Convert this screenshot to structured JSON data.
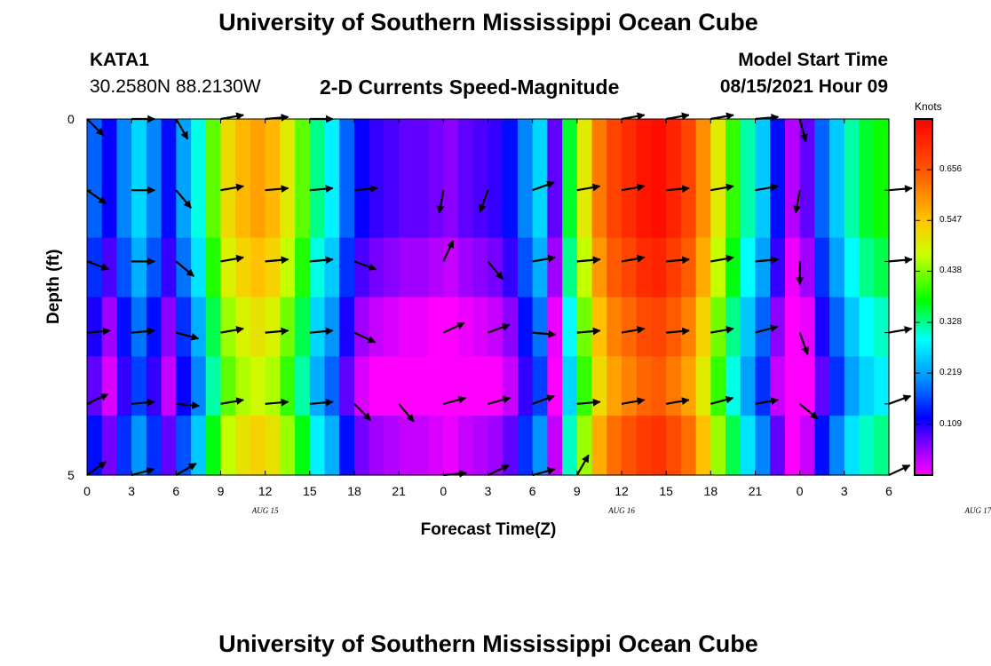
{
  "header": {
    "title": "University of Southern Mississippi Ocean Cube",
    "station": "KATA1",
    "coords": "30.2580N  88.2130W",
    "subtitle": "2-D Currents Speed-Magnitude",
    "model_label": "Model Start Time",
    "model_time": "08/15/2021 Hour 09",
    "bottom_title": "University of Southern Mississippi Ocean Cube"
  },
  "colorbar": {
    "units": "Knots",
    "ticks": [
      "0.656",
      "0.547",
      "0.438",
      "0.328",
      "0.219",
      "0.109"
    ],
    "tick_values": [
      0.656,
      0.547,
      0.438,
      0.328,
      0.219,
      0.109
    ],
    "min": 0.0,
    "max": 0.765
  },
  "chart_data": {
    "type": "heatmap",
    "title": "2-D Currents Speed-Magnitude",
    "xlabel": "Forecast Time(Z)",
    "ylabel": "Depth (ft)",
    "x_tick_labels": [
      "0",
      "3",
      "6",
      "9",
      "12",
      "15",
      "18",
      "21",
      "0",
      "3",
      "6",
      "9",
      "12",
      "15",
      "18",
      "21",
      "0",
      "3",
      "6"
    ],
    "date_labels": [
      {
        "text": "AUG 15",
        "x_hour": 12
      },
      {
        "text": "AUG 16",
        "x_hour": 36
      },
      {
        "text": "AUG 17",
        "x_hour": 60
      }
    ],
    "y_tick_labels": [
      "0",
      "5"
    ],
    "xlim": [
      0,
      54
    ],
    "ylim": [
      0,
      5
    ],
    "speed_profile": {
      "hours": [
        0,
        1,
        2,
        3,
        4,
        5,
        6,
        7,
        8,
        9,
        10,
        11,
        12,
        13,
        14,
        15,
        16,
        17,
        18,
        19,
        20,
        21,
        22,
        23,
        24,
        25,
        26,
        27,
        28,
        29,
        30,
        31,
        32,
        33,
        34,
        35,
        36,
        37,
        38,
        39,
        40,
        41,
        42,
        43,
        44,
        45,
        46,
        47,
        48,
        49,
        50,
        51,
        52,
        53,
        54
      ],
      "knots": [
        0.18,
        0.12,
        0.2,
        0.26,
        0.2,
        0.13,
        0.22,
        0.3,
        0.42,
        0.52,
        0.56,
        0.58,
        0.56,
        0.5,
        0.42,
        0.33,
        0.28,
        0.18,
        0.12,
        0.1,
        0.09,
        0.08,
        0.08,
        0.07,
        0.06,
        0.08,
        0.09,
        0.1,
        0.13,
        0.2,
        0.26,
        0.08,
        0.36,
        0.5,
        0.62,
        0.68,
        0.71,
        0.74,
        0.75,
        0.72,
        0.68,
        0.6,
        0.5,
        0.4,
        0.32,
        0.25,
        0.13,
        0.04,
        0.08,
        0.18,
        0.25,
        0.32,
        0.36,
        0.38,
        0.4
      ]
    },
    "layer_shift": [
      0.0,
      0.0,
      -0.03,
      -0.07,
      -0.1,
      -0.05
    ],
    "arrows": {
      "hours": [
        0,
        3,
        6,
        9,
        12,
        15,
        18,
        21,
        24,
        27,
        30,
        33,
        36,
        39,
        42,
        45,
        48,
        51,
        54
      ],
      "layers": [
        [
          -45,
          0,
          -60,
          10,
          5,
          0,
          null,
          null,
          null,
          null,
          null,
          null,
          10,
          10,
          10,
          5,
          -75,
          null,
          null
        ],
        [
          -35,
          0,
          -50,
          10,
          5,
          5,
          5,
          null,
          -100,
          -110,
          20,
          10,
          10,
          5,
          10,
          10,
          -100,
          null,
          5
        ],
        [
          -20,
          0,
          -40,
          10,
          5,
          5,
          -20,
          null,
          65,
          -50,
          10,
          5,
          10,
          5,
          10,
          5,
          -90,
          null,
          5
        ],
        [
          5,
          5,
          -15,
          10,
          5,
          5,
          -25,
          null,
          25,
          20,
          -5,
          5,
          10,
          5,
          10,
          15,
          -70,
          null,
          10
        ],
        [
          25,
          5,
          -5,
          10,
          5,
          5,
          -45,
          -50,
          15,
          15,
          20,
          5,
          10,
          10,
          15,
          10,
          -40,
          null,
          20
        ],
        [
          35,
          15,
          30,
          null,
          null,
          null,
          null,
          null,
          5,
          25,
          15,
          60,
          null,
          null,
          null,
          null,
          null,
          null,
          25
        ]
      ]
    }
  }
}
